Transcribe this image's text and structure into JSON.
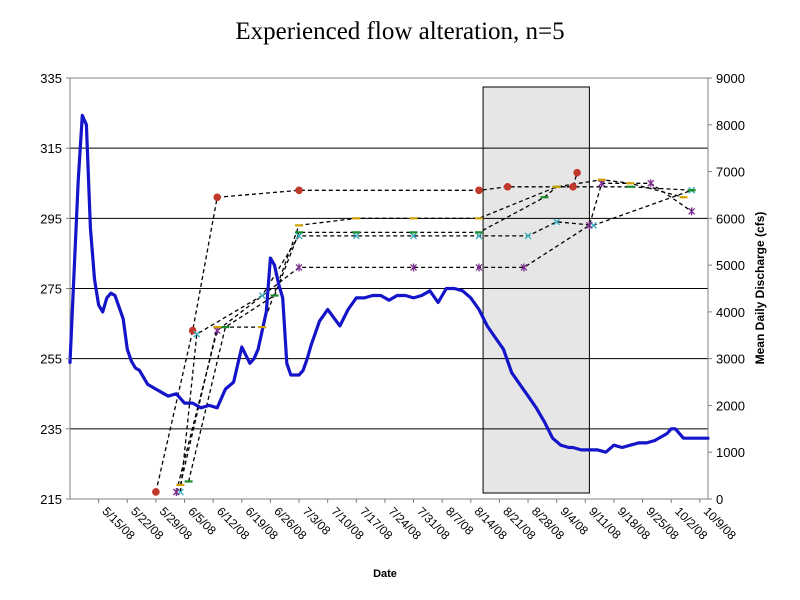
{
  "chart_data": {
    "type": "line",
    "title": "Experienced flow alteration, n=5",
    "xlabel": "Date",
    "ylabel": "",
    "y2label": "Mean Daily Discharge (cfs)",
    "ylim": [
      215,
      335
    ],
    "y2lim": [
      0,
      9000
    ],
    "yticks": [
      "335",
      "315",
      "295",
      "275",
      "255",
      "235",
      "215"
    ],
    "y2ticks": [
      "9000",
      "8000",
      "7000",
      "6000",
      "5000",
      "4000",
      "3000",
      "2000",
      "1000",
      "0"
    ],
    "xlim": [
      "5/8/08",
      "10/11/08"
    ],
    "xticks": [
      "5/15/08",
      "5/22/08",
      "5/29/08",
      "6/5/08",
      "6/12/08",
      "6/19/08",
      "6/26/08",
      "7/3/08",
      "7/10/08",
      "7/17/08",
      "7/24/08",
      "7/31/08",
      "8/7/08",
      "8/14/08",
      "8/21/08",
      "8/28/08",
      "9/4/08",
      "9/11/08",
      "9/18/08",
      "9/25/08",
      "10/2/08",
      "10/9/08"
    ],
    "shaded_region": [
      "8/17/08",
      "9/12/08"
    ],
    "grid": true,
    "discharge": {
      "name": "Mean Daily Discharge (cfs)",
      "color": "#1414c8",
      "x": [
        "5/8/08",
        "5/10/08",
        "5/11/08",
        "5/12/08",
        "5/13/08",
        "5/14/08",
        "5/15/08",
        "5/16/08",
        "5/17/08",
        "5/18/08",
        "5/19/08",
        "5/20/08",
        "5/21/08",
        "5/22/08",
        "5/23/08",
        "5/24/08",
        "5/25/08",
        "5/26/08",
        "5/27/08",
        "5/29/08",
        "5/31/08",
        "6/1/08",
        "6/3/08",
        "6/5/08",
        "6/7/08",
        "6/9/08",
        "6/11/08",
        "6/13/08",
        "6/15/08",
        "6/17/08",
        "6/19/08",
        "6/21/08",
        "6/22/08",
        "6/23/08",
        "6/25/08",
        "6/26/08",
        "6/27/08",
        "6/28/08",
        "6/29/08",
        "6/30/08",
        "7/1/08",
        "7/2/08",
        "7/3/08",
        "7/4/08",
        "7/5/08",
        "7/6/08",
        "7/8/08",
        "7/10/08",
        "7/13/08",
        "7/15/08",
        "7/17/08",
        "7/19/08",
        "7/21/08",
        "7/23/08",
        "7/25/08",
        "7/27/08",
        "7/29/08",
        "7/31/08",
        "8/2/08",
        "8/4/08",
        "8/6/08",
        "8/8/08",
        "8/10/08",
        "8/12/08",
        "8/14/08",
        "8/16/08",
        "8/18/08",
        "8/20/08",
        "8/22/08",
        "8/24/08",
        "8/26/08",
        "8/28/08",
        "8/30/08",
        "9/1/08",
        "9/3/08",
        "9/5/08",
        "9/7/08",
        "9/8/08",
        "9/10/08",
        "9/12/08",
        "9/14/08",
        "9/16/08",
        "9/18/08",
        "9/20/08",
        "9/22/08",
        "9/24/08",
        "9/26/08",
        "9/28/08",
        "9/30/08",
        "10/1/08",
        "10/2/08",
        "10/3/08",
        "10/5/08",
        "10/7/08",
        "10/9/08",
        "10/11/08"
      ],
      "values": [
        2920,
        6800,
        8200,
        8000,
        5800,
        4700,
        4150,
        4000,
        4300,
        4400,
        4350,
        4100,
        3850,
        3200,
        2950,
        2800,
        2750,
        2600,
        2450,
        2350,
        2250,
        2200,
        2250,
        2050,
        2050,
        1950,
        2000,
        1950,
        2350,
        2500,
        3250,
        2900,
        3000,
        3200,
        4000,
        5150,
        5000,
        4600,
        4300,
        2900,
        2650,
        2650,
        2650,
        2750,
        3000,
        3300,
        3800,
        4050,
        3700,
        4050,
        4300,
        4300,
        4350,
        4350,
        4250,
        4350,
        4350,
        4300,
        4350,
        4450,
        4200,
        4500,
        4500,
        4450,
        4300,
        4050,
        3700,
        3450,
        3200,
        2700,
        2450,
        2200,
        1950,
        1650,
        1300,
        1150,
        1100,
        1100,
        1050,
        1050,
        1050,
        1000,
        1150,
        1100,
        1150,
        1200,
        1200,
        1250,
        1350,
        1400,
        1500,
        1500,
        1300,
        1300,
        1300,
        1300
      ]
    },
    "marker_series": [
      {
        "color": "#c0392b",
        "shape": "circle",
        "x": [
          "5/29/08",
          "6/7/08",
          "6/13/08",
          "7/3/08",
          "8/16/08",
          "8/23/08",
          "9/8/08",
          "9/9/08"
        ],
        "y": [
          217,
          263,
          301,
          303,
          303,
          304,
          304,
          308
        ]
      },
      {
        "color": "#3cb0c0",
        "shape": "x",
        "x": [
          "6/4/08",
          "6/8/08",
          "6/24/08",
          "7/3/08",
          "7/17/08",
          "7/31/08",
          "8/16/08",
          "8/28/08",
          "9/4/08",
          "9/13/08",
          "10/7/08"
        ],
        "y": [
          217,
          262,
          273,
          290,
          290,
          290,
          290,
          290,
          294,
          293,
          303
        ]
      },
      {
        "color": "#7b2d8e",
        "shape": "star",
        "x": [
          "6/3/08",
          "6/13/08",
          "7/3/08",
          "7/31/08",
          "8/16/08",
          "8/27/08",
          "9/12/08",
          "9/15/08",
          "9/27/08",
          "10/7/08"
        ],
        "y": [
          217,
          263,
          281,
          281,
          281,
          281,
          293,
          305,
          305,
          297
        ]
      },
      {
        "color": "#1a8a2a",
        "shape": "dash",
        "x": [
          "6/6/08",
          "6/15/08",
          "6/27/08",
          "7/3/08",
          "7/17/08",
          "7/31/08",
          "8/16/08",
          "9/1/08",
          "9/4/08",
          "9/22/08",
          "10/7/08"
        ],
        "y": [
          220,
          264,
          273,
          291,
          291,
          291,
          291,
          301,
          304,
          304,
          303
        ]
      },
      {
        "color": "#d1a000",
        "shape": "dash",
        "x": [
          "6/4/08",
          "6/13/08",
          "6/24/08",
          "7/3/08",
          "7/17/08",
          "7/31/08",
          "8/16/08",
          "9/4/08",
          "9/15/08",
          "9/22/08",
          "10/5/08"
        ],
        "y": [
          219,
          264,
          264,
          293,
          295,
          295,
          295,
          304,
          306,
          305,
          301
        ]
      }
    ]
  }
}
